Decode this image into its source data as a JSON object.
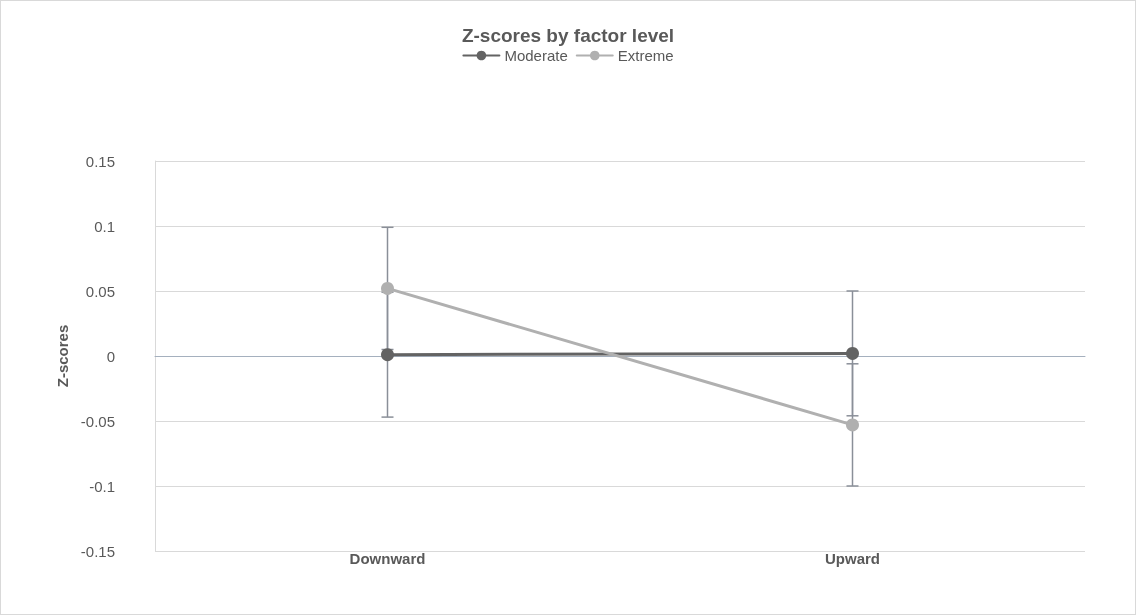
{
  "chart_data": {
    "type": "line",
    "title": "Z-scores by factor level",
    "ylabel": "Z-scores",
    "categories": [
      "Downward",
      "Upward"
    ],
    "series": [
      {
        "name": "Moderate",
        "color": "#636363",
        "values": [
          0.001,
          0.002
        ],
        "errors": [
          0.048,
          0.048
        ]
      },
      {
        "name": "Extreme",
        "color": "#b0b0b0",
        "values": [
          0.052,
          -0.053
        ],
        "errors": [
          0.047,
          0.047
        ]
      }
    ],
    "ylim": [
      -0.15,
      0.15
    ],
    "yticks": [
      -0.15,
      -0.1,
      -0.05,
      0,
      0.05,
      0.1,
      0.15
    ],
    "grid": "y",
    "legend": "top",
    "marker": "circle",
    "line_style": "solid"
  }
}
